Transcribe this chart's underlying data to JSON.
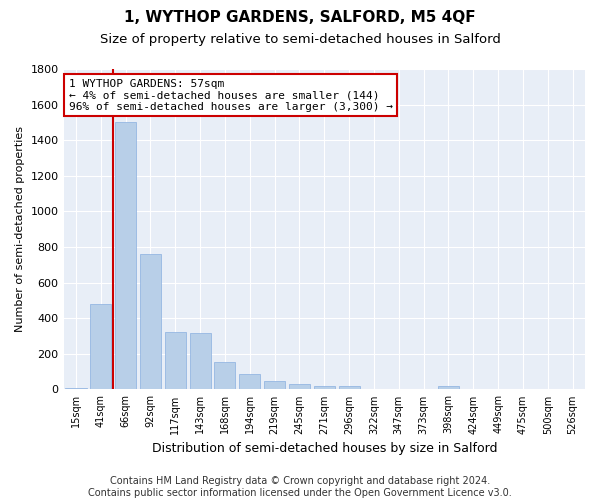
{
  "title": "1, WYTHOP GARDENS, SALFORD, M5 4QF",
  "subtitle": "Size of property relative to semi-detached houses in Salford",
  "xlabel": "Distribution of semi-detached houses by size in Salford",
  "ylabel": "Number of semi-detached properties",
  "categories": [
    "15sqm",
    "41sqm",
    "66sqm",
    "92sqm",
    "117sqm",
    "143sqm",
    "168sqm",
    "194sqm",
    "219sqm",
    "245sqm",
    "271sqm",
    "296sqm",
    "322sqm",
    "347sqm",
    "373sqm",
    "398sqm",
    "424sqm",
    "449sqm",
    "475sqm",
    "500sqm",
    "526sqm"
  ],
  "values": [
    10,
    480,
    1500,
    760,
    320,
    315,
    155,
    88,
    48,
    28,
    18,
    18,
    0,
    0,
    0,
    18,
    0,
    0,
    0,
    0,
    0
  ],
  "bar_color": "#b8cfe8",
  "bar_edge_color": "#8aafe0",
  "vline_color": "#cc0000",
  "vline_x_index": 1.5,
  "annotation_text": "1 WYTHOP GARDENS: 57sqm\n← 4% of semi-detached houses are smaller (144)\n96% of semi-detached houses are larger (3,300) →",
  "annotation_box_facecolor": "#ffffff",
  "annotation_box_edgecolor": "#cc0000",
  "ylim": [
    0,
    1800
  ],
  "yticks": [
    0,
    200,
    400,
    600,
    800,
    1000,
    1200,
    1400,
    1600,
    1800
  ],
  "footnote": "Contains HM Land Registry data © Crown copyright and database right 2024.\nContains public sector information licensed under the Open Government Licence v3.0.",
  "plot_bg_color": "#e8eef7",
  "grid_color": "#ffffff",
  "title_fontsize": 11,
  "subtitle_fontsize": 9.5,
  "xlabel_fontsize": 9,
  "ylabel_fontsize": 8,
  "tick_fontsize": 8,
  "xtick_fontsize": 7,
  "footnote_fontsize": 7,
  "annotation_fontsize": 8
}
